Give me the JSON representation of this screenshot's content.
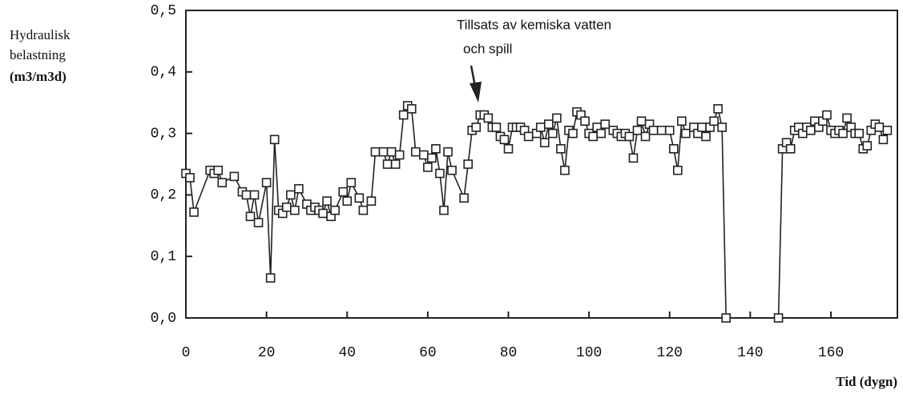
{
  "chart_data": {
    "type": "line",
    "y_label": [
      "Hydraulisk",
      "belastning",
      "(m3/m3d)"
    ],
    "x_label": "Tid (dygn)",
    "annotation": [
      "Tillsats av kemiska vatten",
      "och spill"
    ],
    "color": "#222222",
    "x": [
      0,
      1,
      2,
      6,
      7,
      8,
      9,
      12,
      14,
      15,
      16,
      17,
      18,
      20,
      21,
      22,
      23,
      24,
      25,
      26,
      27,
      28,
      30,
      31,
      32,
      33,
      34,
      35,
      36,
      37,
      39,
      40,
      41,
      43,
      44,
      46,
      47,
      49,
      50,
      51,
      52,
      53,
      54,
      55,
      56,
      57,
      59,
      60,
      61,
      62,
      63,
      64,
      65,
      66,
      69,
      70,
      71,
      72,
      73,
      74,
      75,
      76,
      77,
      78,
      79,
      80,
      81,
      82,
      83,
      84,
      85,
      87,
      88,
      89,
      90,
      91,
      92,
      93,
      94,
      95,
      96,
      97,
      98,
      99,
      100,
      101,
      102,
      103,
      104,
      106,
      107,
      108,
      109,
      110,
      111,
      112,
      113,
      114,
      115,
      116,
      118,
      120,
      121,
      122,
      123,
      124,
      126,
      127,
      128,
      129,
      130,
      131,
      132,
      133,
      134,
      147,
      148,
      149,
      150,
      151,
      152,
      153,
      154,
      155,
      156,
      157,
      158,
      159,
      160,
      161,
      162,
      163,
      164,
      165,
      166,
      167,
      168,
      169,
      170,
      171,
      172,
      173,
      174
    ],
    "values": [
      0.235,
      0.228,
      0.172,
      0.24,
      0.235,
      0.24,
      0.22,
      0.23,
      0.205,
      0.2,
      0.165,
      0.2,
      0.155,
      0.22,
      0.065,
      0.29,
      0.175,
      0.17,
      0.18,
      0.2,
      0.175,
      0.21,
      0.185,
      0.175,
      0.18,
      0.175,
      0.17,
      0.19,
      0.165,
      0.175,
      0.205,
      0.19,
      0.22,
      0.195,
      0.175,
      0.19,
      0.27,
      0.27,
      0.25,
      0.27,
      0.25,
      0.265,
      0.33,
      0.345,
      0.34,
      0.27,
      0.265,
      0.245,
      0.26,
      0.275,
      0.235,
      0.175,
      0.27,
      0.24,
      0.195,
      0.25,
      0.305,
      0.31,
      0.33,
      0.33,
      0.325,
      0.31,
      0.31,
      0.295,
      0.29,
      0.275,
      0.31,
      0.31,
      0.31,
      0.305,
      0.295,
      0.3,
      0.31,
      0.285,
      0.315,
      0.3,
      0.325,
      0.275,
      0.24,
      0.305,
      0.3,
      0.335,
      0.33,
      0.32,
      0.3,
      0.295,
      0.31,
      0.3,
      0.315,
      0.305,
      0.3,
      0.295,
      0.3,
      0.295,
      0.26,
      0.305,
      0.32,
      0.295,
      0.315,
      0.305,
      0.305,
      0.305,
      0.275,
      0.24,
      0.32,
      0.3,
      0.31,
      0.3,
      0.31,
      0.295,
      0.31,
      0.32,
      0.34,
      0.31,
      0.0,
      0.0,
      0.275,
      0.285,
      0.275,
      0.305,
      0.31,
      0.3,
      0.31,
      0.305,
      0.32,
      0.31,
      0.32,
      0.33,
      0.305,
      0.3,
      0.305,
      0.3,
      0.325,
      0.31,
      0.3,
      0.3,
      0.275,
      0.28,
      0.305,
      0.315,
      0.31,
      0.29,
      0.305
    ],
    "xlim": [
      0,
      176.5
    ],
    "ylim": [
      0,
      0.5
    ],
    "xticks": [
      0,
      20,
      40,
      60,
      80,
      100,
      120,
      140,
      160
    ],
    "yticks": [
      {
        "value": 0,
        "label": "0,0"
      },
      {
        "value": 0.1,
        "label": "0,1"
      },
      {
        "value": 0.2,
        "label": "0,2"
      },
      {
        "value": 0.3,
        "label": "0,3"
      },
      {
        "value": 0.4,
        "label": "0,4"
      },
      {
        "value": 0.5,
        "label": "0,5"
      }
    ]
  }
}
